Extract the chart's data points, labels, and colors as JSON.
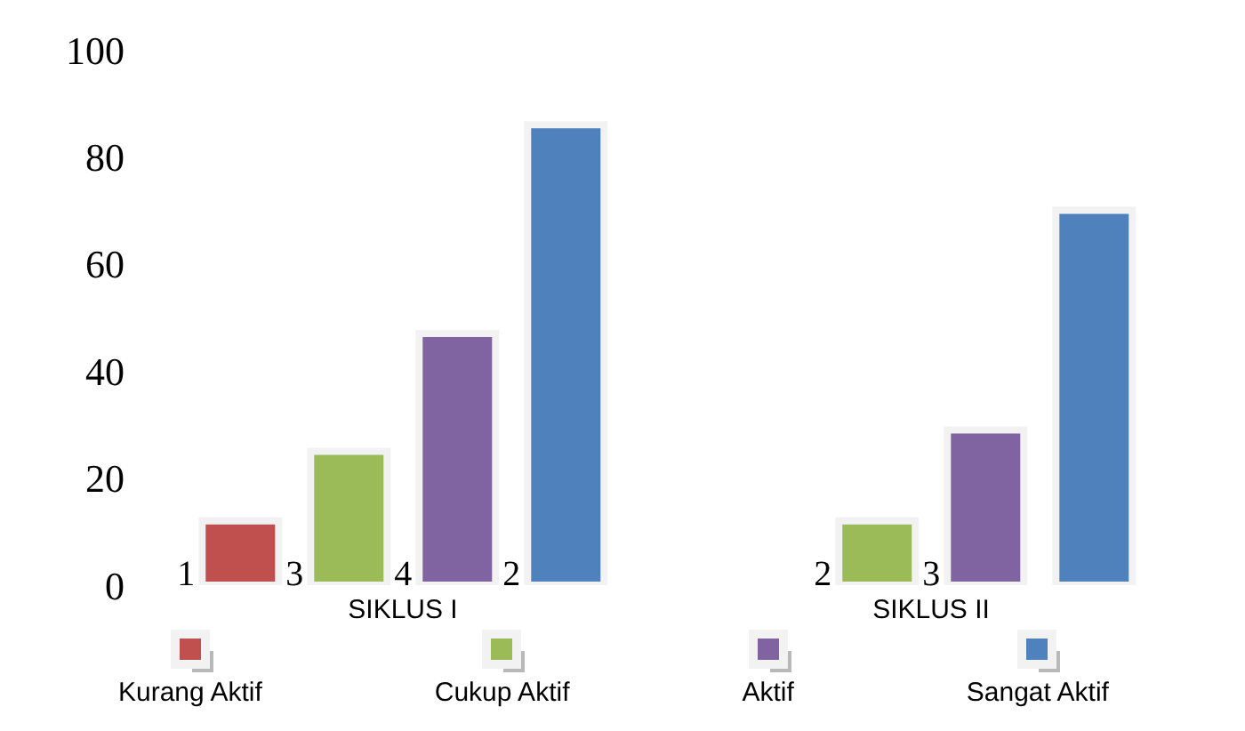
{
  "chart_data": {
    "type": "bar",
    "categories": [
      "SIKLUS I",
      "SIKLUS II"
    ],
    "series": [
      {
        "name": "Kurang Aktif",
        "color": "#c0504d",
        "values": [
          12,
          null
        ]
      },
      {
        "name": "Cukup Aktif",
        "color": "#9bbb59",
        "values": [
          25,
          12
        ]
      },
      {
        "name": "Aktif",
        "color": "#8064a2",
        "values": [
          47,
          29
        ]
      },
      {
        "name": "Sangat Aktif",
        "color": "#4f81bd",
        "values": [
          86,
          70
        ]
      }
    ],
    "annotations": [
      "1",
      "3",
      "4",
      "2",
      "2",
      "3"
    ],
    "ylim": [
      0,
      100
    ],
    "yticks": [
      0,
      20,
      40,
      60,
      80,
      100
    ],
    "grid": false,
    "legend": "bottom"
  }
}
